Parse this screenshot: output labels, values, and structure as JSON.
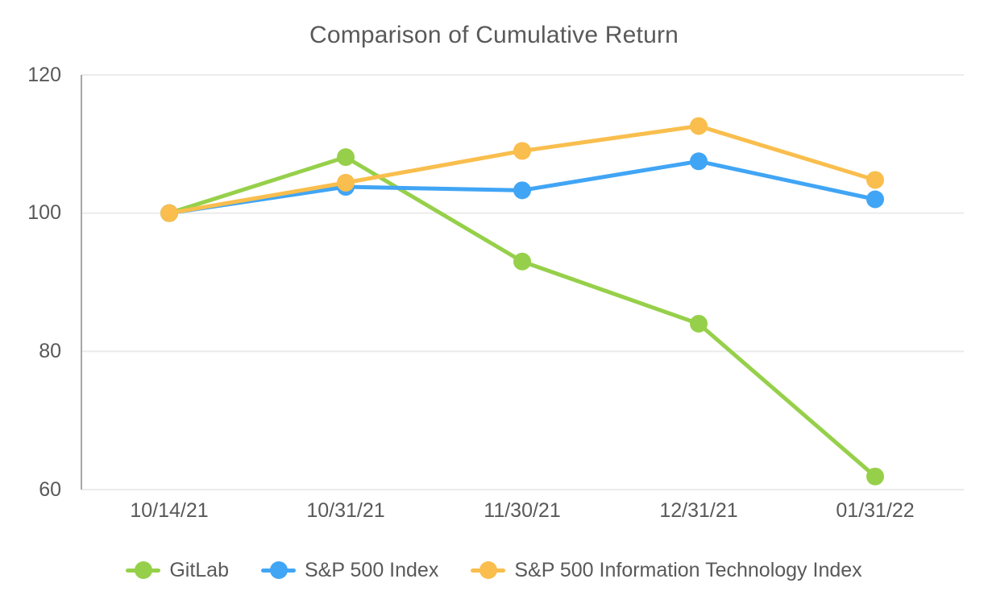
{
  "chart_data": {
    "type": "line",
    "title": "Comparison of Cumulative Return",
    "xlabel": "",
    "ylabel": "",
    "categories": [
      "10/14/21",
      "10/31/21",
      "11/30/21",
      "12/31/21",
      "01/31/22"
    ],
    "series": [
      {
        "name": "GitLab",
        "color": "#96D04A",
        "values": [
          100,
          108.1,
          93.0,
          84.0,
          61.9
        ]
      },
      {
        "name": "S&P 500 Index",
        "color": "#41A5F5",
        "values": [
          100,
          103.8,
          103.3,
          107.5,
          102.0
        ]
      },
      {
        "name": "S&P 500 Information Technology Index",
        "color": "#F9BE4D",
        "values": [
          100,
          104.4,
          109.0,
          112.6,
          104.8
        ]
      }
    ],
    "ylim": [
      60,
      120
    ],
    "yticks": [
      120,
      100,
      80,
      60
    ],
    "grid": true,
    "legend_position": "bottom"
  },
  "colors": {
    "title_text": "#595959",
    "tick_text": "#595959",
    "axis_line": "#A6A6A6",
    "gridline": "#EBEBEB",
    "background": "#FFFFFF"
  }
}
